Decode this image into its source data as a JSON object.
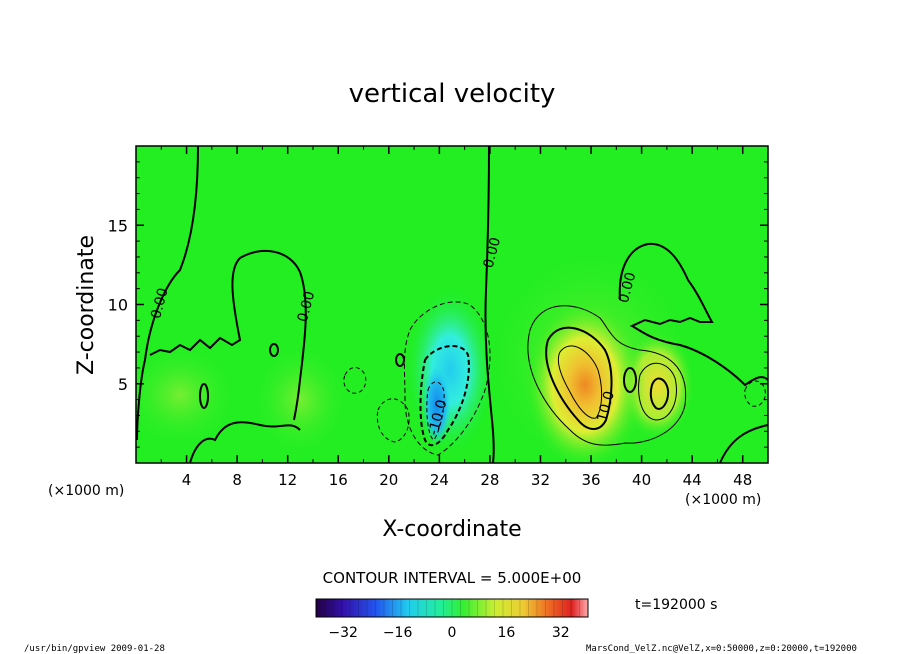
{
  "chart_data": {
    "type": "heatmap",
    "title": "vertical velocity",
    "xlabel": "X-coordinate",
    "ylabel": "Z-coordinate",
    "x_unit_left": "(×1000 m)",
    "x_unit_right": "(×1000 m)",
    "xlim": [
      0,
      50
    ],
    "ylim": [
      0,
      20
    ],
    "x_ticks": [
      "4",
      "8",
      "12",
      "16",
      "20",
      "24",
      "28",
      "32",
      "36",
      "40",
      "44",
      "48"
    ],
    "x_tick_values": [
      4,
      8,
      12,
      16,
      20,
      24,
      28,
      32,
      36,
      40,
      44,
      48
    ],
    "y_ticks": [
      "5",
      "10",
      "15"
    ],
    "y_tick_values": [
      5,
      10,
      15
    ],
    "contour_interval": "CONTOUR INTERVAL = 5.000E+00",
    "contour_labels": [
      {
        "text": "0.00",
        "x": 2.2,
        "z": 10.0
      },
      {
        "text": "0.00",
        "x": 13.8,
        "z": 9.8
      },
      {
        "text": "0.00",
        "x": 28.5,
        "z": 13.2
      },
      {
        "text": "0.00",
        "x": 39.2,
        "z": 11.0
      },
      {
        "text": "-10.0",
        "x": 24.2,
        "z": 2.8
      },
      {
        "text": "10.0",
        "x": 37.5,
        "z": 3.5
      }
    ],
    "features": [
      {
        "kind": "downdraft",
        "x": 24.5,
        "z": 5.5,
        "min_value": -14
      },
      {
        "kind": "updraft",
        "x": 36.5,
        "z": 3.5,
        "max_value": 22
      },
      {
        "kind": "updraft",
        "x": 41.5,
        "z": 4.5,
        "max_value": 12
      }
    ],
    "colorbar": {
      "ticks": [
        "−32",
        "−16",
        "0",
        "16",
        "32"
      ],
      "tick_values": [
        -32,
        -16,
        0,
        16,
        32
      ],
      "range": [
        -40,
        40
      ]
    },
    "time_label": "t=192000 s",
    "grid": false
  },
  "footer": {
    "left": "/usr/bin/gpview  2009-01-28",
    "right": "MarsCond_VelZ.nc@VelZ,x=0:50000,z=0:20000,t=192000"
  },
  "colors": {
    "background_field": "#22ee22",
    "frame": "#000000",
    "updraft_core": "#ee9922",
    "downdraft_core": "#22ddee"
  }
}
